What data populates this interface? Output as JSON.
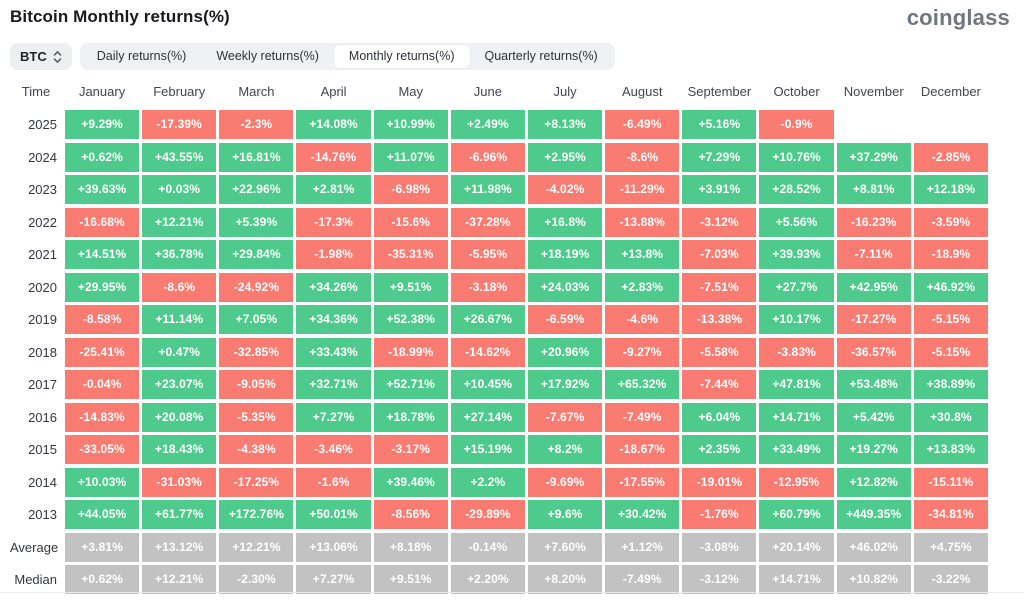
{
  "header": {
    "title": "Bitcoin Monthly returns(%)",
    "logo": "coinglass"
  },
  "controls": {
    "symbol_select": {
      "value": "BTC"
    },
    "tabs": [
      {
        "label": "Daily returns(%)",
        "active": false
      },
      {
        "label": "Weekly returns(%)",
        "active": false
      },
      {
        "label": "Monthly returns(%)",
        "active": true
      },
      {
        "label": "Quarterly returns(%)",
        "active": false
      }
    ]
  },
  "table": {
    "columns": [
      "Time",
      "January",
      "February",
      "March",
      "April",
      "May",
      "June",
      "July",
      "August",
      "September",
      "October",
      "November",
      "December"
    ],
    "rows": [
      {
        "label": "2025",
        "type": "year",
        "values": [
          "+9.29%",
          "-17.39%",
          "-2.3%",
          "+14.08%",
          "+10.99%",
          "+2.49%",
          "+8.13%",
          "-6.49%",
          "+5.16%",
          "-0.9%",
          "",
          ""
        ]
      },
      {
        "label": "2024",
        "type": "year",
        "values": [
          "+0.62%",
          "+43.55%",
          "+16.81%",
          "-14.76%",
          "+11.07%",
          "-6.96%",
          "+2.95%",
          "-8.6%",
          "+7.29%",
          "+10.76%",
          "+37.29%",
          "-2.85%"
        ]
      },
      {
        "label": "2023",
        "type": "year",
        "values": [
          "+39.63%",
          "+0.03%",
          "+22.96%",
          "+2.81%",
          "-6.98%",
          "+11.98%",
          "-4.02%",
          "-11.29%",
          "+3.91%",
          "+28.52%",
          "+8.81%",
          "+12.18%"
        ]
      },
      {
        "label": "2022",
        "type": "year",
        "values": [
          "-16.68%",
          "+12.21%",
          "+5.39%",
          "-17.3%",
          "-15.6%",
          "-37.28%",
          "+16.8%",
          "-13.88%",
          "-3.12%",
          "+5.56%",
          "-16.23%",
          "-3.59%"
        ]
      },
      {
        "label": "2021",
        "type": "year",
        "values": [
          "+14.51%",
          "+36.78%",
          "+29.84%",
          "-1.98%",
          "-35.31%",
          "-5.95%",
          "+18.19%",
          "+13.8%",
          "-7.03%",
          "+39.93%",
          "-7.11%",
          "-18.9%"
        ]
      },
      {
        "label": "2020",
        "type": "year",
        "values": [
          "+29.95%",
          "-8.6%",
          "-24.92%",
          "+34.26%",
          "+9.51%",
          "-3.18%",
          "+24.03%",
          "+2.83%",
          "-7.51%",
          "+27.7%",
          "+42.95%",
          "+46.92%"
        ]
      },
      {
        "label": "2019",
        "type": "year",
        "values": [
          "-8.58%",
          "+11.14%",
          "+7.05%",
          "+34.36%",
          "+52.38%",
          "+26.67%",
          "-6.59%",
          "-4.6%",
          "-13.38%",
          "+10.17%",
          "-17.27%",
          "-5.15%"
        ]
      },
      {
        "label": "2018",
        "type": "year",
        "values": [
          "-25.41%",
          "+0.47%",
          "-32.85%",
          "+33.43%",
          "-18.99%",
          "-14.62%",
          "+20.96%",
          "-9.27%",
          "-5.58%",
          "-3.83%",
          "-36.57%",
          "-5.15%"
        ]
      },
      {
        "label": "2017",
        "type": "year",
        "values": [
          "-0.04%",
          "+23.07%",
          "-9.05%",
          "+32.71%",
          "+52.71%",
          "+10.45%",
          "+17.92%",
          "+65.32%",
          "-7.44%",
          "+47.81%",
          "+53.48%",
          "+38.89%"
        ]
      },
      {
        "label": "2016",
        "type": "year",
        "values": [
          "-14.83%",
          "+20.08%",
          "-5.35%",
          "+7.27%",
          "+18.78%",
          "+27.14%",
          "-7.67%",
          "-7.49%",
          "+6.04%",
          "+14.71%",
          "+5.42%",
          "+30.8%"
        ]
      },
      {
        "label": "2015",
        "type": "year",
        "values": [
          "-33.05%",
          "+18.43%",
          "-4.38%",
          "-3.46%",
          "-3.17%",
          "+15.19%",
          "+8.2%",
          "-18.67%",
          "+2.35%",
          "+33.49%",
          "+19.27%",
          "+13.83%"
        ]
      },
      {
        "label": "2014",
        "type": "year",
        "values": [
          "+10.03%",
          "-31.03%",
          "-17.25%",
          "-1.6%",
          "+39.46%",
          "+2.2%",
          "-9.69%",
          "-17.55%",
          "-19.01%",
          "-12.95%",
          "+12.82%",
          "-15.11%"
        ]
      },
      {
        "label": "2013",
        "type": "year",
        "values": [
          "+44.05%",
          "+61.77%",
          "+172.76%",
          "+50.01%",
          "-8.56%",
          "-29.89%",
          "+9.6%",
          "+30.42%",
          "-1.76%",
          "+60.79%",
          "+449.35%",
          "-34.81%"
        ]
      },
      {
        "label": "Average",
        "type": "summary",
        "values": [
          "+3.81%",
          "+13.12%",
          "+12.21%",
          "+13.06%",
          "+8.18%",
          "-0.14%",
          "+7.60%",
          "+1.12%",
          "-3.08%",
          "+20.14%",
          "+46.02%",
          "+4.75%"
        ]
      },
      {
        "label": "Median",
        "type": "summary",
        "values": [
          "+0.62%",
          "+12.21%",
          "-2.30%",
          "+7.27%",
          "+9.51%",
          "+2.20%",
          "+8.20%",
          "-7.49%",
          "-3.12%",
          "+14.71%",
          "+10.82%",
          "-3.22%"
        ]
      }
    ]
  },
  "colors": {
    "positive": "#4eca8c",
    "negative": "#f97b71",
    "summary": "#c2c2c2"
  }
}
